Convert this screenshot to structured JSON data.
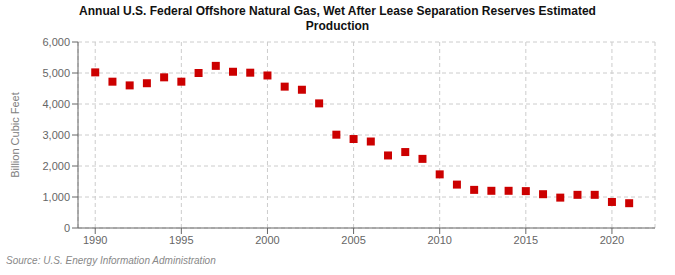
{
  "chart_data": {
    "type": "scatter",
    "title": "Annual U.S. Federal Offshore Natural Gas, Wet After Lease Separation Reserves Estimated\nProduction",
    "ylabel": "Billion Cubic Feet",
    "annotations": [
      "Source: U.S. Energy Information Administration"
    ],
    "x": [
      1990,
      1991,
      1992,
      1993,
      1994,
      1995,
      1996,
      1997,
      1998,
      1999,
      2000,
      2001,
      2002,
      2003,
      2004,
      2005,
      2006,
      2007,
      2008,
      2009,
      2010,
      2011,
      2012,
      2013,
      2014,
      2015,
      2016,
      2017,
      2018,
      2019,
      2020,
      2021
    ],
    "values": [
      5020,
      4720,
      4600,
      4670,
      4860,
      4720,
      5000,
      5230,
      5040,
      5010,
      4920,
      4560,
      4460,
      4020,
      3010,
      2870,
      2790,
      2340,
      2450,
      2230,
      1730,
      1400,
      1230,
      1200,
      1200,
      1190,
      1090,
      980,
      1070,
      1070,
      840,
      800
    ],
    "color": "#cc0000",
    "marker": "square",
    "xlim": [
      1989,
      2022.5
    ],
    "ylim": [
      0,
      6000
    ],
    "xticks": [
      1990,
      1995,
      2000,
      2005,
      2010,
      2015,
      2020
    ],
    "yticks": [
      0,
      {
        "value": 1000,
        "label": "1,000"
      },
      {
        "value": 2000,
        "label": "2,000"
      },
      {
        "value": 3000,
        "label": "3,000"
      },
      {
        "value": 4000,
        "label": "4,000"
      },
      {
        "value": 5000,
        "label": "5,000"
      },
      {
        "value": 6000,
        "label": "6,000"
      }
    ],
    "grid": true
  }
}
